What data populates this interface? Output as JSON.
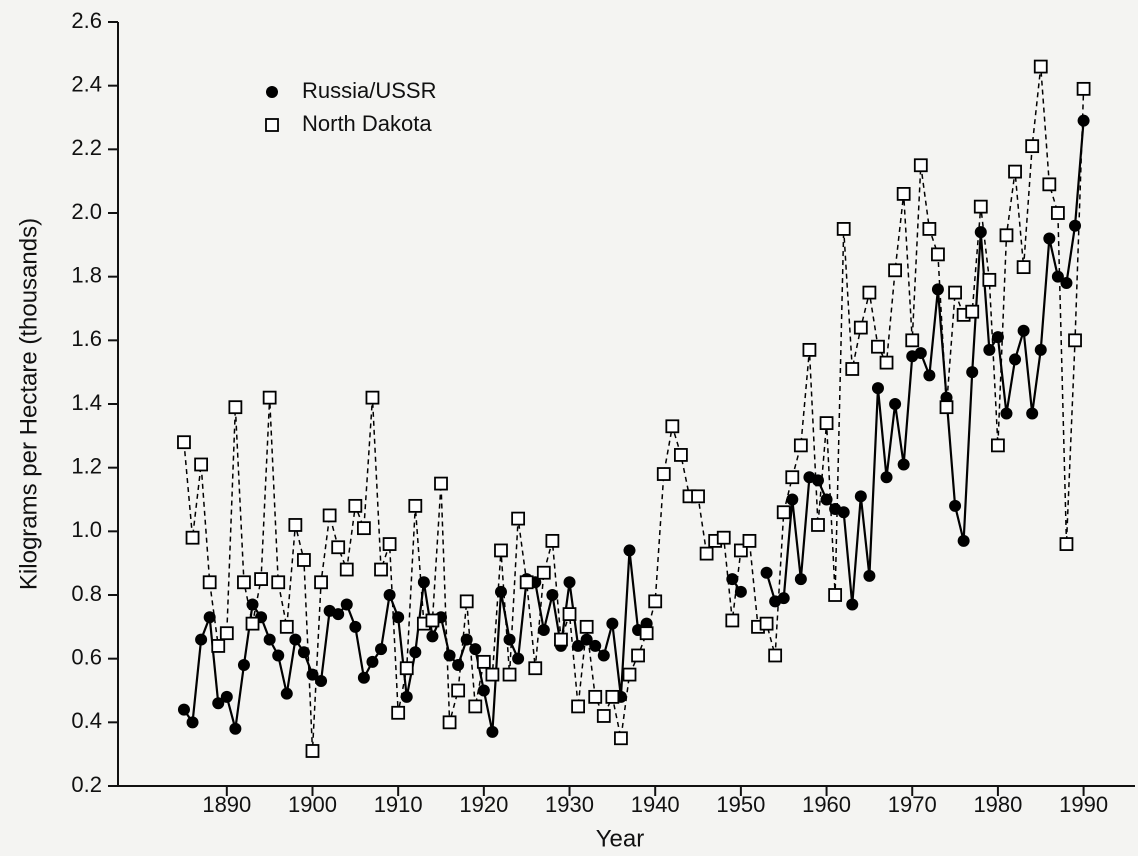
{
  "chart_data": {
    "type": "line",
    "x_label": "Year",
    "y_label": "Kilograms per Hectare (thousands)",
    "x": [
      1885,
      1886,
      1887,
      1888,
      1889,
      1890,
      1891,
      1892,
      1893,
      1894,
      1895,
      1896,
      1897,
      1898,
      1899,
      1900,
      1901,
      1902,
      1903,
      1904,
      1905,
      1906,
      1907,
      1908,
      1909,
      1910,
      1911,
      1912,
      1913,
      1914,
      1915,
      1916,
      1917,
      1918,
      1919,
      1920,
      1921,
      1922,
      1923,
      1924,
      1925,
      1926,
      1927,
      1928,
      1929,
      1930,
      1931,
      1932,
      1933,
      1934,
      1935,
      1936,
      1937,
      1938,
      1939,
      1940,
      1941,
      1942,
      1943,
      1944,
      1945,
      1946,
      1947,
      1948,
      1949,
      1950,
      1951,
      1952,
      1953,
      1954,
      1955,
      1956,
      1957,
      1958,
      1959,
      1960,
      1961,
      1962,
      1963,
      1964,
      1965,
      1966,
      1967,
      1968,
      1969,
      1970,
      1971,
      1972,
      1973,
      1974,
      1975,
      1976,
      1977,
      1978,
      1979,
      1980,
      1981,
      1982,
      1983,
      1984,
      1985,
      1986,
      1987,
      1988,
      1989,
      1990
    ],
    "series": [
      {
        "name": "Russia/USSR",
        "color": "#000000",
        "marker": "circle",
        "line_style": "solid",
        "values": [
          0.44,
          0.4,
          0.66,
          0.73,
          0.46,
          0.48,
          0.38,
          0.58,
          0.77,
          0.73,
          0.66,
          0.61,
          0.49,
          0.66,
          0.62,
          0.55,
          0.53,
          0.75,
          0.74,
          0.77,
          0.7,
          0.54,
          0.59,
          0.63,
          0.8,
          0.73,
          0.48,
          0.62,
          0.84,
          0.67,
          0.73,
          0.61,
          0.58,
          0.66,
          0.63,
          0.5,
          0.37,
          0.81,
          0.66,
          0.6,
          0.85,
          0.84,
          0.69,
          0.8,
          0.64,
          0.84,
          0.64,
          0.66,
          0.64,
          0.61,
          0.71,
          0.48,
          0.94,
          0.69,
          0.71,
          null,
          null,
          null,
          null,
          null,
          null,
          null,
          null,
          null,
          0.85,
          0.81,
          null,
          null,
          0.87,
          0.78,
          0.79,
          1.1,
          0.85,
          1.17,
          1.16,
          1.1,
          1.07,
          1.06,
          0.77,
          1.11,
          0.86,
          1.45,
          1.17,
          1.4,
          1.21,
          1.55,
          1.56,
          1.49,
          1.76,
          1.42,
          1.08,
          0.97,
          1.5,
          1.94,
          1.57,
          1.61,
          1.37,
          1.54,
          1.63,
          1.37,
          1.57,
          1.92,
          1.8,
          1.78,
          1.96,
          2.29
        ]
      },
      {
        "name": "North Dakota",
        "color": "#000000",
        "marker": "square",
        "line_style": "dashed",
        "values": [
          1.28,
          0.98,
          1.21,
          0.84,
          0.64,
          0.68,
          1.39,
          0.84,
          0.71,
          0.85,
          1.42,
          0.84,
          0.7,
          1.02,
          0.91,
          0.31,
          0.84,
          1.05,
          0.95,
          0.88,
          1.08,
          1.01,
          1.42,
          0.88,
          0.96,
          0.43,
          0.57,
          1.08,
          0.71,
          0.72,
          1.15,
          0.4,
          0.5,
          0.78,
          0.45,
          0.59,
          0.55,
          0.94,
          0.55,
          1.04,
          0.84,
          0.57,
          0.87,
          0.97,
          0.66,
          0.74,
          0.45,
          0.7,
          0.48,
          0.42,
          0.48,
          0.35,
          0.55,
          0.61,
          0.68,
          0.78,
          1.18,
          1.33,
          1.24,
          1.11,
          1.11,
          0.93,
          0.97,
          0.98,
          0.72,
          0.94,
          0.97,
          0.7,
          0.71,
          0.61,
          1.06,
          1.17,
          1.27,
          1.57,
          1.02,
          1.34,
          0.8,
          1.95,
          1.51,
          1.64,
          1.75,
          1.58,
          1.53,
          1.82,
          2.06,
          1.6,
          2.15,
          1.95,
          1.87,
          1.39,
          1.75,
          1.68,
          1.69,
          2.02,
          1.79,
          1.27,
          1.93,
          2.13,
          1.83,
          2.21,
          2.46,
          2.09,
          2.0,
          0.96,
          1.6,
          2.39
        ]
      }
    ],
    "xlim": [
      1877.3,
      1996
    ],
    "xticks": [
      1890,
      1900,
      1910,
      1920,
      1930,
      1940,
      1950,
      1960,
      1970,
      1980,
      1990
    ],
    "ylim": [
      0.2,
      2.6
    ],
    "yticks": [
      0.2,
      0.4,
      0.6,
      0.8,
      {
        "value": 1.0,
        "label": "1.0"
      },
      1.2,
      1.4,
      1.6,
      1.8,
      {
        "value": 2.0,
        "label": "2.0"
      },
      2.2,
      2.4,
      2.6
    ],
    "legend": "upper left",
    "grid": false
  }
}
